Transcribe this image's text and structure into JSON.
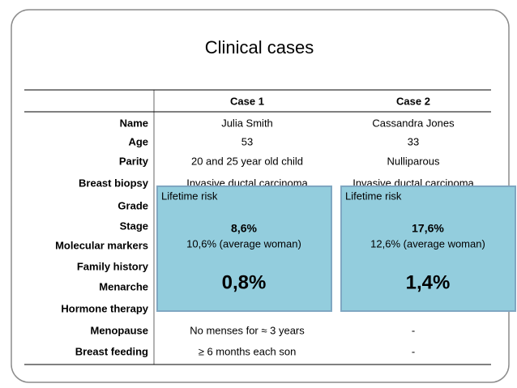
{
  "title": "Clinical cases",
  "table": {
    "header": [
      "Case 1",
      "Case 2"
    ],
    "rows": [
      [
        "Name",
        "Julia Smith",
        "Cassandra Jones"
      ],
      [
        "Age",
        "53",
        "33"
      ],
      [
        "Parity",
        "20 and 25 year old child",
        "Nulliparous"
      ],
      [
        "Breast biopsy",
        "Invasive ductal carcinoma",
        "Invasive ductal carcinoma"
      ],
      [
        "Grade",
        null,
        null
      ],
      [
        "Stage",
        null,
        null
      ],
      [
        "Molecular markers",
        null,
        null
      ],
      [
        "Family history",
        null,
        null
      ],
      [
        "Menarche",
        null,
        null
      ],
      [
        "Hormone therapy",
        null,
        null
      ],
      [
        "Menopause",
        "No menses for ≈ 3 years",
        "-"
      ],
      [
        "Breast feeding",
        "≥ 6 months each son",
        "-"
      ]
    ]
  },
  "overlays": [
    {
      "heading": "Lifetime risk",
      "risk": "8,6%",
      "average": "10,6% (average woman)",
      "value": "0,8%"
    },
    {
      "heading": "Lifetime risk",
      "risk": "17,6%",
      "average": "12,6% (average woman)",
      "value": "1,4%"
    }
  ]
}
